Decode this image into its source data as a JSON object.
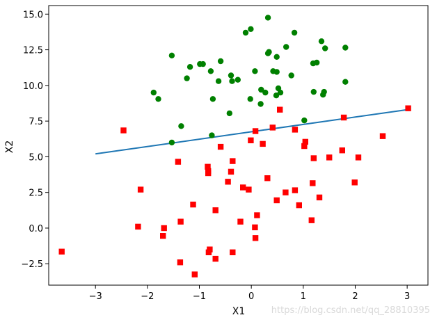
{
  "chart_data": {
    "type": "scatter",
    "title": "",
    "xlabel": "X1",
    "ylabel": "X2",
    "xlim": [
      -3.9,
      3.4
    ],
    "ylim": [
      -4.0,
      15.6
    ],
    "xticks": [
      -3,
      -2,
      -1,
      0,
      1,
      2,
      3
    ],
    "yticks": [
      -2.5,
      0.0,
      2.5,
      5.0,
      7.5,
      10.0,
      12.5,
      15.0
    ],
    "xtick_labels": [
      "−3",
      "−2",
      "−1",
      "0",
      "1",
      "2",
      "3"
    ],
    "ytick_labels": [
      "−2.5",
      "0.0",
      "2.5",
      "5.0",
      "7.5",
      "10.0",
      "12.5",
      "15.0"
    ],
    "grid": false,
    "legend": "none",
    "colors": {
      "series_green": "#008000",
      "series_red": "#ff0000",
      "line": "#1f77b4",
      "axes": "#000000"
    },
    "series": [
      {
        "marker": "circle",
        "color": "#008000",
        "points": [
          [
            0.32,
            14.75
          ],
          [
            -0.01,
            13.95
          ],
          [
            -0.11,
            13.7
          ],
          [
            0.83,
            13.7
          ],
          [
            1.35,
            13.1
          ],
          [
            0.67,
            12.7
          ],
          [
            1.42,
            12.6
          ],
          [
            1.81,
            12.65
          ],
          [
            -1.53,
            12.1
          ],
          [
            0.49,
            12.0
          ],
          [
            0.34,
            12.35
          ],
          [
            0.32,
            12.25
          ],
          [
            -1.18,
            11.3
          ],
          [
            -0.99,
            11.5
          ],
          [
            -0.93,
            11.5
          ],
          [
            -0.59,
            11.7
          ],
          [
            1.26,
            11.6
          ],
          [
            1.19,
            11.55
          ],
          [
            -0.78,
            11.0
          ],
          [
            0.07,
            11.0
          ],
          [
            0.42,
            11.0
          ],
          [
            0.49,
            10.95
          ],
          [
            -0.39,
            10.7
          ],
          [
            0.77,
            10.7
          ],
          [
            -0.26,
            10.4
          ],
          [
            -1.24,
            10.5
          ],
          [
            -0.63,
            10.3
          ],
          [
            -0.37,
            10.3
          ],
          [
            1.81,
            10.25
          ],
          [
            0.52,
            9.8
          ],
          [
            0.19,
            9.7
          ],
          [
            0.27,
            9.5
          ],
          [
            0.56,
            9.5
          ],
          [
            0.48,
            9.3
          ],
          [
            -1.88,
            9.5
          ],
          [
            -1.79,
            9.05
          ],
          [
            1.2,
            9.55
          ],
          [
            1.4,
            9.55
          ],
          [
            1.38,
            9.35
          ],
          [
            -0.74,
            9.05
          ],
          [
            -0.02,
            9.05
          ],
          [
            0.18,
            8.7
          ],
          [
            -0.42,
            8.05
          ],
          [
            1.02,
            7.55
          ],
          [
            -1.35,
            7.15
          ],
          [
            -0.76,
            6.5
          ],
          [
            -1.53,
            6.0
          ]
        ]
      },
      {
        "marker": "square",
        "color": "#ff0000",
        "points": [
          [
            3.02,
            8.4
          ],
          [
            0.55,
            8.3
          ],
          [
            1.78,
            7.75
          ],
          [
            -2.46,
            6.85
          ],
          [
            0.41,
            7.05
          ],
          [
            0.08,
            6.8
          ],
          [
            0.84,
            6.9
          ],
          [
            2.53,
            6.45
          ],
          [
            1.04,
            6.05
          ],
          [
            -0.01,
            6.15
          ],
          [
            0.22,
            5.9
          ],
          [
            1.02,
            5.75
          ],
          [
            -0.59,
            5.7
          ],
          [
            1.75,
            5.45
          ],
          [
            1.5,
            4.95
          ],
          [
            2.06,
            4.95
          ],
          [
            1.2,
            4.9
          ],
          [
            -0.36,
            4.7
          ],
          [
            -1.41,
            4.65
          ],
          [
            -0.84,
            4.3
          ],
          [
            -0.83,
            4.0
          ],
          [
            -0.83,
            3.85
          ],
          [
            -0.39,
            3.95
          ],
          [
            0.31,
            3.5
          ],
          [
            -0.45,
            3.25
          ],
          [
            1.99,
            3.2
          ],
          [
            1.18,
            3.15
          ],
          [
            -0.16,
            2.85
          ],
          [
            -0.05,
            2.7
          ],
          [
            0.66,
            2.5
          ],
          [
            0.84,
            2.65
          ],
          [
            -2.13,
            2.7
          ],
          [
            1.31,
            2.15
          ],
          [
            0.49,
            1.95
          ],
          [
            -1.12,
            1.65
          ],
          [
            0.92,
            1.6
          ],
          [
            -0.69,
            1.25
          ],
          [
            0.11,
            0.9
          ],
          [
            1.16,
            0.55
          ],
          [
            -0.21,
            0.45
          ],
          [
            -1.36,
            0.45
          ],
          [
            -2.18,
            0.1
          ],
          [
            -1.68,
            0.0
          ],
          [
            0.07,
            0.05
          ],
          [
            -1.7,
            -0.55
          ],
          [
            0.08,
            -0.7
          ],
          [
            -0.8,
            -1.5
          ],
          [
            -0.82,
            -1.7
          ],
          [
            -0.36,
            -1.7
          ],
          [
            -3.65,
            -1.65
          ],
          [
            -0.69,
            -2.15
          ],
          [
            -1.37,
            -2.4
          ],
          [
            -1.09,
            -3.25
          ]
        ]
      },
      {
        "marker": "line",
        "color": "#1f77b4",
        "points": [
          [
            -3.0,
            5.2
          ],
          [
            3.0,
            8.3
          ]
        ]
      }
    ],
    "annotations": [
      "https://blog.csdn.net/qq_28810395"
    ]
  }
}
